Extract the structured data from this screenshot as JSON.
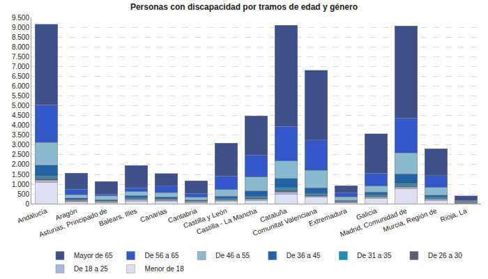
{
  "chart_data": {
    "type": "bar",
    "stacked": true,
    "title": "Personas con discapacidad por tramos de edad y género",
    "categories": [
      "Andalucía",
      "Aragón",
      "Asturias, Principado de",
      "Balears, Illes",
      "Canarias",
      "Cantabria",
      "Castilla y León",
      "Castilla - La Mancha",
      "Cataluña",
      "Comunitat Valenciana",
      "Extremadura",
      "Galicia",
      "Madrid, Comunidad de",
      "Murcia, Región de",
      "Rioja, La"
    ],
    "series": [
      {
        "name": "Menor de 18",
        "color": "#dde0f2",
        "values": [
          1080,
          100,
          70,
          150,
          130,
          70,
          130,
          180,
          500,
          330,
          60,
          280,
          780,
          180,
          30
        ]
      },
      {
        "name": "De 18 a 25",
        "color": "#a9b7de",
        "values": [
          130,
          40,
          30,
          60,
          50,
          30,
          50,
          60,
          100,
          60,
          20,
          60,
          80,
          50,
          10
        ]
      },
      {
        "name": "De 26 a 30",
        "color": "#5c5f70",
        "values": [
          100,
          30,
          20,
          40,
          30,
          20,
          30,
          60,
          100,
          60,
          20,
          50,
          70,
          40,
          10
        ]
      },
      {
        "name": "De 31 a 35",
        "color": "#1f8db3",
        "values": [
          120,
          40,
          30,
          50,
          40,
          20,
          50,
          80,
          120,
          70,
          20,
          60,
          100,
          60,
          10
        ]
      },
      {
        "name": "De 36 a 45",
        "color": "#2462a3",
        "values": [
          550,
          100,
          70,
          120,
          100,
          60,
          130,
          280,
          470,
          300,
          60,
          160,
          500,
          110,
          30
        ]
      },
      {
        "name": "De 46 a 55",
        "color": "#8bb9cd",
        "values": [
          1150,
          160,
          180,
          210,
          220,
          130,
          330,
          700,
          890,
          880,
          170,
          300,
          1060,
          400,
          40
        ]
      },
      {
        "name": "De 56 a 65",
        "color": "#3358c9",
        "values": [
          1920,
          280,
          100,
          180,
          330,
          200,
          710,
          1130,
          1760,
          1560,
          220,
          650,
          1780,
          600,
          40
        ]
      },
      {
        "name": "Mayor de 65",
        "color": "#3d5087",
        "values": [
          4100,
          820,
          630,
          1140,
          640,
          650,
          1670,
          1990,
          5160,
          3540,
          360,
          2020,
          4700,
          1360,
          230
        ]
      }
    ],
    "ylim": [
      0,
      9500
    ],
    "yticks": [
      0,
      500,
      {
        "value": 1000,
        "label": "1.000"
      },
      {
        "value": 1500,
        "label": "1.500"
      },
      {
        "value": 2000,
        "label": "2.000"
      },
      {
        "value": 2500,
        "label": "2.500"
      },
      {
        "value": 3000,
        "label": "3.000"
      },
      {
        "value": 3500,
        "label": "3.500"
      },
      {
        "value": 4000,
        "label": "4.000"
      },
      {
        "value": 4500,
        "label": "4.500"
      },
      {
        "value": 5000,
        "label": "5.000"
      },
      {
        "value": 5500,
        "label": "5.500"
      },
      {
        "value": 6000,
        "label": "6.000"
      },
      {
        "value": 6500,
        "label": "6.500"
      },
      {
        "value": 7000,
        "label": "7.000"
      },
      {
        "value": 7500,
        "label": "7.500"
      },
      {
        "value": 8000,
        "label": "8.000"
      },
      {
        "value": 8500,
        "label": "8.500"
      },
      {
        "value": 9000,
        "label": "9.000"
      },
      {
        "value": 9500,
        "label": "9.500"
      }
    ],
    "grid": true,
    "legend": "bottom"
  }
}
